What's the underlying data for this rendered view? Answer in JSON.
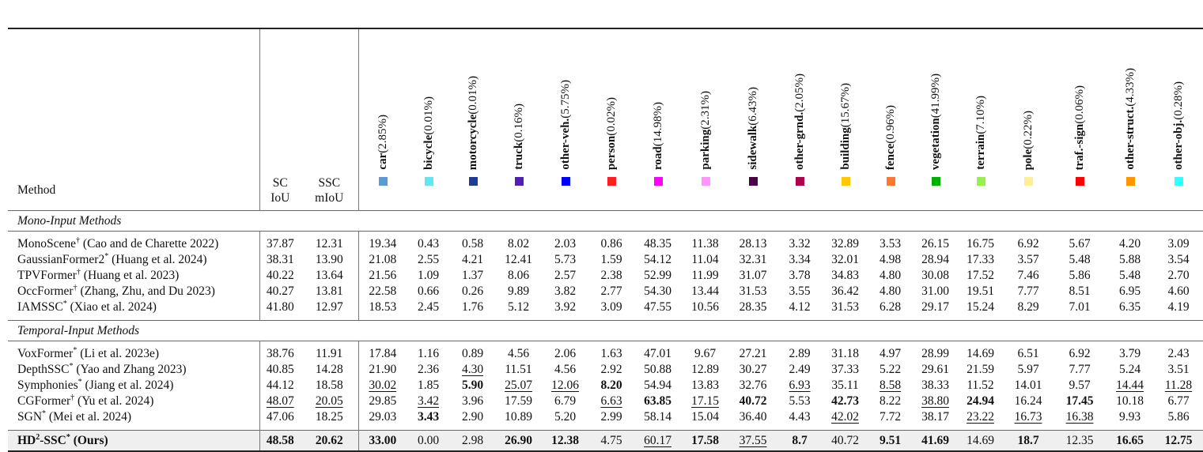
{
  "header": {
    "method": "Method",
    "sc": [
      "SC",
      "IoU"
    ],
    "ssc": [
      "SSC",
      "mIoU"
    ],
    "classes": [
      {
        "name": "car",
        "pct": "(2.85%)",
        "color": "#5a9bd5"
      },
      {
        "name": "bicycle",
        "pct": "(0.01%)",
        "color": "#64e6f0"
      },
      {
        "name": "motorcycle",
        "pct": "(0.01%)",
        "color": "#1e3c96"
      },
      {
        "name": "truck",
        "pct": "(0.16%)",
        "color": "#5020b4"
      },
      {
        "name": "other-veh.",
        "pct": "(5.75%)",
        "color": "#0000ff"
      },
      {
        "name": "person",
        "pct": "(0.02%)",
        "color": "#ff1e1e"
      },
      {
        "name": "road",
        "pct": "(14.98%)",
        "color": "#ff00ff"
      },
      {
        "name": "parking",
        "pct": "(2.31%)",
        "color": "#ff96ff"
      },
      {
        "name": "sidewalk",
        "pct": "(6.43%)",
        "color": "#4b004b"
      },
      {
        "name": "other-grnd.",
        "pct": "(2.05%)",
        "color": "#af004b"
      },
      {
        "name": "building",
        "pct": "(15.67%)",
        "color": "#ffc800"
      },
      {
        "name": "fence",
        "pct": "(0.96%)",
        "color": "#ff7832"
      },
      {
        "name": "vegetation",
        "pct": "(41.99%)",
        "color": "#00af00"
      },
      {
        "name": "terrain",
        "pct": "(7.10%)",
        "color": "#96f050"
      },
      {
        "name": "pole",
        "pct": "(0.22%)",
        "color": "#fff096"
      },
      {
        "name": "traf.-sign",
        "pct": "(0.06%)",
        "color": "#ff0000"
      },
      {
        "name": "other-struct.",
        "pct": "(4.33%)",
        "color": "#ff9600"
      },
      {
        "name": "other-obj.",
        "pct": "(0.28%)",
        "color": "#32ffff"
      }
    ]
  },
  "sections": [
    {
      "title": "Mono-Input Methods",
      "rows": [
        {
          "name": "MonoScene",
          "mark": "†",
          "cite": "(Cao and de Charette 2022)",
          "values": [
            "37.87",
            "12.31",
            "19.34",
            "0.43",
            "0.58",
            "8.02",
            "2.03",
            "0.86",
            "48.35",
            "11.38",
            "28.13",
            "3.32",
            "32.89",
            "3.53",
            "26.15",
            "16.75",
            "6.92",
            "5.67",
            "4.20",
            "3.09"
          ],
          "bold": [],
          "underline": []
        },
        {
          "name": "GaussianFormer2",
          "mark": "*",
          "cite": "(Huang et al. 2024)",
          "values": [
            "38.31",
            "13.90",
            "21.08",
            "2.55",
            "4.21",
            "12.41",
            "5.73",
            "1.59",
            "54.12",
            "11.04",
            "32.31",
            "3.34",
            "32.01",
            "4.98",
            "28.94",
            "17.33",
            "3.57",
            "5.48",
            "5.88",
            "3.54"
          ],
          "bold": [],
          "underline": []
        },
        {
          "name": "TPVFormer",
          "mark": "†",
          "cite": "(Huang et al. 2023)",
          "values": [
            "40.22",
            "13.64",
            "21.56",
            "1.09",
            "1.37",
            "8.06",
            "2.57",
            "2.38",
            "52.99",
            "11.99",
            "31.07",
            "3.78",
            "34.83",
            "4.80",
            "30.08",
            "17.52",
            "7.46",
            "5.86",
            "5.48",
            "2.70"
          ],
          "bold": [],
          "underline": []
        },
        {
          "name": "OccFormer",
          "mark": "†",
          "cite": "(Zhang, Zhu, and Du 2023)",
          "values": [
            "40.27",
            "13.81",
            "22.58",
            "0.66",
            "0.26",
            "9.89",
            "3.82",
            "2.77",
            "54.30",
            "13.44",
            "31.53",
            "3.55",
            "36.42",
            "4.80",
            "31.00",
            "19.51",
            "7.77",
            "8.51",
            "6.95",
            "4.60"
          ],
          "bold": [],
          "underline": []
        },
        {
          "name": "IAMSSC",
          "mark": "*",
          "cite": "(Xiao et al. 2024)",
          "values": [
            "41.80",
            "12.97",
            "18.53",
            "2.45",
            "1.76",
            "5.12",
            "3.92",
            "3.09",
            "47.55",
            "10.56",
            "28.35",
            "4.12",
            "31.53",
            "6.28",
            "29.17",
            "15.24",
            "8.29",
            "7.01",
            "6.35",
            "4.19"
          ],
          "bold": [],
          "underline": []
        }
      ]
    },
    {
      "title": "Temporal-Input Methods",
      "rows": [
        {
          "name": "VoxFormer",
          "mark": "*",
          "cite": "(Li et al. 2023e)",
          "values": [
            "38.76",
            "11.91",
            "17.84",
            "1.16",
            "0.89",
            "4.56",
            "2.06",
            "1.63",
            "47.01",
            "9.67",
            "27.21",
            "2.89",
            "31.18",
            "4.97",
            "28.99",
            "14.69",
            "6.51",
            "6.92",
            "3.79",
            "2.43"
          ],
          "bold": [],
          "underline": []
        },
        {
          "name": "DepthSSC",
          "mark": "*",
          "cite": "(Yao and Zhang 2023)",
          "values": [
            "40.85",
            "14.28",
            "21.90",
            "2.36",
            "4.30",
            "11.51",
            "4.56",
            "2.92",
            "50.88",
            "12.89",
            "30.27",
            "2.49",
            "37.33",
            "5.22",
            "29.61",
            "21.59",
            "5.97",
            "7.77",
            "5.24",
            "3.51"
          ],
          "bold": [],
          "underline": [
            4
          ]
        },
        {
          "name": "Symphonies",
          "mark": "*",
          "cite": "(Jiang et al. 2024)",
          "values": [
            "44.12",
            "18.58",
            "30.02",
            "1.85",
            "5.90",
            "25.07",
            "12.06",
            "8.20",
            "54.94",
            "13.83",
            "32.76",
            "6.93",
            "35.11",
            "8.58",
            "38.33",
            "11.52",
            "14.01",
            "9.57",
            "14.44",
            "11.28"
          ],
          "bold": [
            4,
            7
          ],
          "underline": [
            2,
            5,
            6,
            11,
            13,
            18,
            19
          ]
        },
        {
          "name": "CGFormer",
          "mark": "†",
          "cite": "(Yu et al. 2024)",
          "values": [
            "48.07",
            "20.05",
            "29.85",
            "3.42",
            "3.96",
            "17.59",
            "6.79",
            "6.63",
            "63.85",
            "17.15",
            "40.72",
            "5.53",
            "42.73",
            "8.22",
            "38.80",
            "24.94",
            "16.24",
            "17.45",
            "10.18",
            "6.77"
          ],
          "bold": [
            8,
            10,
            12,
            15,
            17
          ],
          "underline": [
            0,
            1,
            3,
            7,
            9,
            14
          ]
        },
        {
          "name": "SGN",
          "mark": "*",
          "cite": "(Mei et al. 2024)",
          "values": [
            "47.06",
            "18.25",
            "29.03",
            "3.43",
            "2.90",
            "10.89",
            "5.20",
            "2.99",
            "58.14",
            "15.04",
            "36.40",
            "4.43",
            "42.02",
            "7.72",
            "38.17",
            "23.22",
            "16.73",
            "16.38",
            "9.93",
            "5.86"
          ],
          "bold": [
            3
          ],
          "underline": [
            12,
            15,
            16,
            17
          ]
        }
      ]
    }
  ],
  "ours": {
    "name": "HD",
    "sup": "2",
    "suffix": "-SSC",
    "mark": "*",
    "cite": "(Ours)",
    "values": [
      "48.58",
      "20.62",
      "33.00",
      "0.00",
      "2.98",
      "26.90",
      "12.38",
      "4.75",
      "60.17",
      "17.58",
      "37.55",
      "8.7",
      "40.72",
      "9.51",
      "41.69",
      "14.69",
      "18.7",
      "12.35",
      "16.65",
      "12.75"
    ],
    "bold": [
      0,
      1,
      2,
      5,
      6,
      9,
      11,
      13,
      14,
      16,
      18,
      19
    ],
    "underline": [
      8,
      10
    ]
  }
}
